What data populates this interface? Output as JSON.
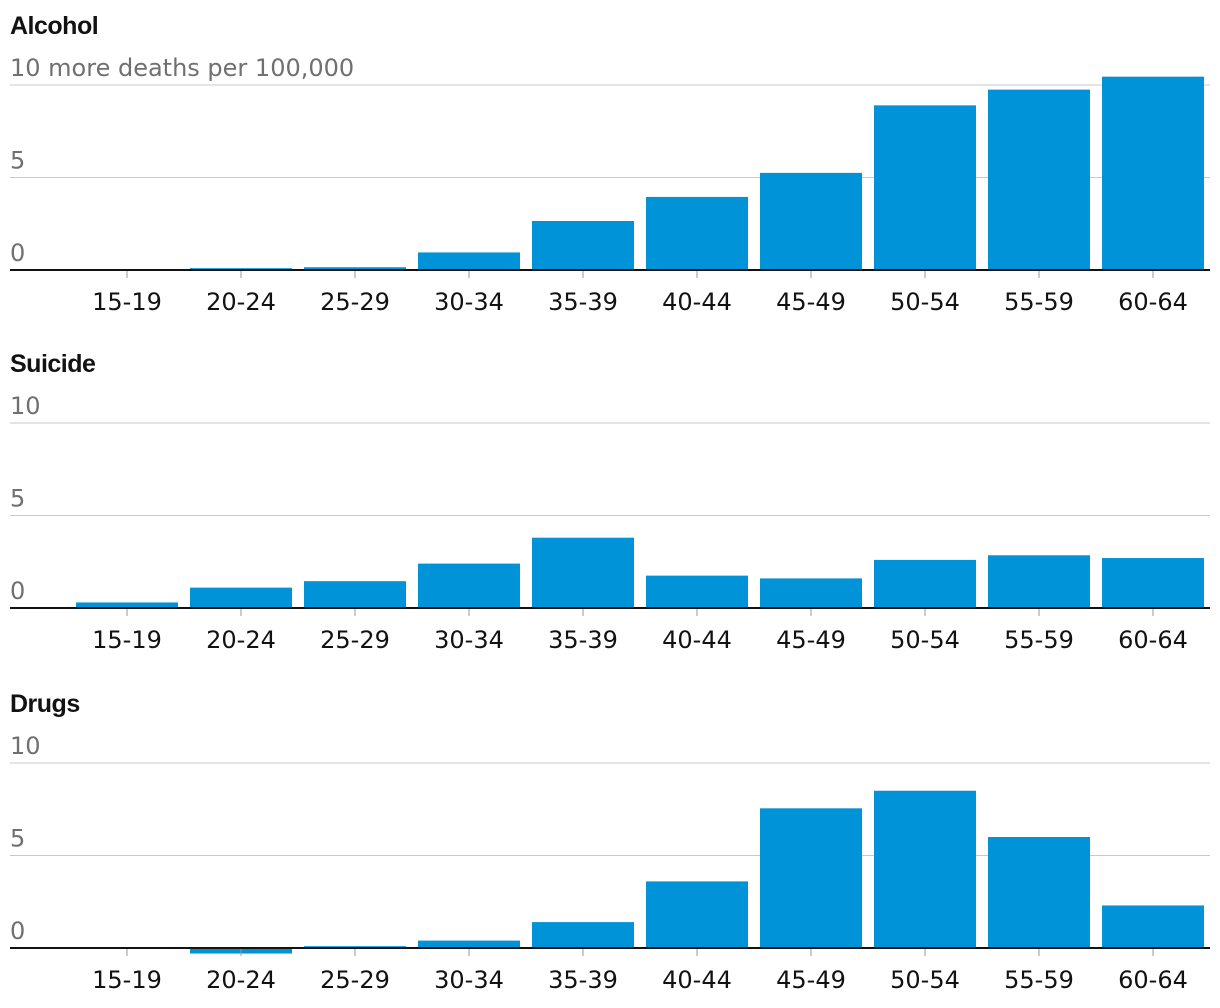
{
  "chart_data": [
    {
      "type": "bar",
      "title": "Alcohol",
      "unit_label": "more deaths per 100,000",
      "categories": [
        "15-19",
        "20-24",
        "25-29",
        "30-34",
        "35-39",
        "40-44",
        "45-49",
        "50-54",
        "55-59",
        "60-64"
      ],
      "values": [
        0.0,
        0.1,
        0.15,
        0.95,
        2.65,
        3.95,
        5.25,
        8.9,
        9.75,
        10.45
      ],
      "ylim": [
        0,
        10
      ],
      "yticks": [
        "0",
        "5",
        "10"
      ],
      "grid": true,
      "color": "#0193d7"
    },
    {
      "type": "bar",
      "title": "Suicide",
      "categories": [
        "15-19",
        "20-24",
        "25-29",
        "30-34",
        "35-39",
        "40-44",
        "45-49",
        "50-54",
        "55-59",
        "60-64"
      ],
      "values": [
        0.3,
        1.1,
        1.45,
        2.4,
        3.8,
        1.75,
        1.6,
        2.6,
        2.85,
        2.7
      ],
      "ylim": [
        0,
        10
      ],
      "yticks": [
        "0",
        "5",
        "10"
      ],
      "grid": true,
      "color": "#0193d7"
    },
    {
      "type": "bar",
      "title": "Drugs",
      "categories": [
        "15-19",
        "20-24",
        "25-29",
        "30-34",
        "35-39",
        "40-44",
        "45-49",
        "50-54",
        "55-59",
        "60-64"
      ],
      "values": [
        0.0,
        -0.3,
        0.1,
        0.4,
        1.4,
        3.6,
        7.55,
        8.5,
        6.0,
        2.3
      ],
      "ylim": [
        0,
        10
      ],
      "yticks": [
        "0",
        "5",
        "10"
      ],
      "grid": true,
      "color": "#0193d7"
    }
  ]
}
